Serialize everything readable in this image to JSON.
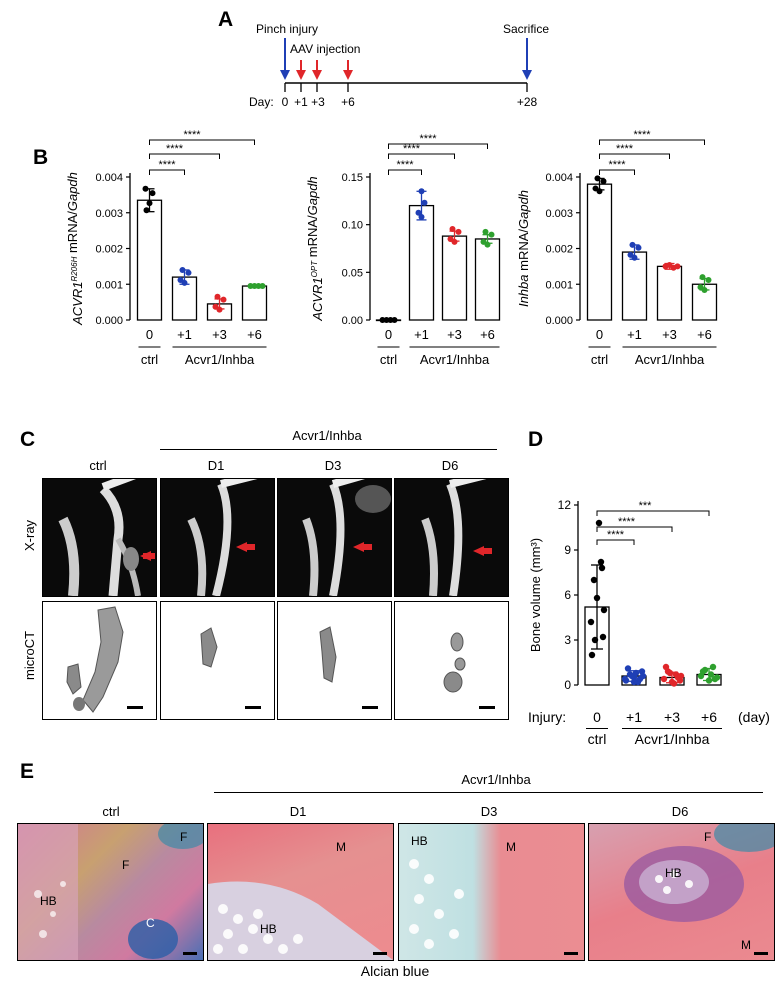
{
  "panelA": {
    "letter": "A",
    "pinch": "Pinch injury",
    "aav": "AAV injection",
    "sacrifice": "Sacrifice",
    "day_label": "Day:",
    "days": [
      "0",
      "+1",
      "+3",
      "+6",
      "+28"
    ]
  },
  "panelB": {
    "letter": "B",
    "charts": [
      {
        "ylabel_parts": [
          "ACVR1",
          "R206H",
          " mRNA/",
          "Gapdh"
        ],
        "yticks": [
          "0.004",
          "0.003",
          "0.002",
          "0.001",
          "0.000"
        ],
        "sig": [
          "****",
          "****",
          "****"
        ]
      },
      {
        "ylabel_parts": [
          "ACVR1",
          "OPT",
          " mRNA/",
          "Gapdh"
        ],
        "yticks": [
          "0.15",
          "0.10",
          "0.05",
          "0.00"
        ],
        "sig": [
          "****",
          "****",
          "****"
        ]
      },
      {
        "ylabel_parts": [
          "Inhba",
          "",
          " mRNA/",
          "Gapdh"
        ],
        "yticks": [
          "0.004",
          "0.003",
          "0.002",
          "0.001",
          "0.000"
        ],
        "sig": [
          "****",
          "****",
          "****"
        ]
      }
    ],
    "xticks": [
      "0",
      "+1",
      "+3",
      "+6"
    ],
    "ctrl": "ctrl",
    "group": "Acvr1/Inhba"
  },
  "panelC": {
    "letter": "C",
    "group": "Acvr1/Inhba",
    "cols": [
      "ctrl",
      "D1",
      "D3",
      "D6"
    ],
    "rows": [
      "X-ray",
      "microCT"
    ]
  },
  "panelD": {
    "letter": "D",
    "ylabel": "Bone volume (mm³)",
    "yticks": [
      "12",
      "9",
      "6",
      "3",
      "0"
    ],
    "injury": "Injury:",
    "xticks": [
      "0",
      "+1",
      "+3",
      "+6"
    ],
    "day": "(day)",
    "ctrl": "ctrl",
    "group": "Acvr1/Inhba",
    "sig": [
      "****",
      "****",
      "***"
    ]
  },
  "panelE": {
    "letter": "E",
    "group": "Acvr1/Inhba",
    "cols": [
      "ctrl",
      "D1",
      "D3",
      "D6"
    ],
    "caption": "Alcian blue",
    "labels": {
      "ctrl": [
        "F",
        "F",
        "HB",
        "C"
      ],
      "d1": [
        "M",
        "HB"
      ],
      "d3": [
        "HB",
        "M"
      ],
      "d6": [
        "F",
        "HB",
        "M"
      ]
    }
  },
  "chart_data": [
    {
      "type": "bar",
      "categories": [
        "0",
        "+1",
        "+3",
        "+6"
      ],
      "values": [
        0.00335,
        0.0012,
        0.00045,
        0.00095
      ],
      "ylim": [
        0,
        0.004
      ],
      "colors": [
        "#000000",
        "#1f3fb5",
        "#e0262a",
        "#2ea02e"
      ]
    },
    {
      "type": "bar",
      "categories": [
        "0",
        "+1",
        "+3",
        "+6"
      ],
      "values": [
        0.0,
        0.12,
        0.088,
        0.085
      ],
      "ylim": [
        0,
        0.15
      ],
      "colors": [
        "#000000",
        "#1f3fb5",
        "#e0262a",
        "#2ea02e"
      ]
    },
    {
      "type": "bar",
      "categories": [
        "0",
        "+1",
        "+3",
        "+6"
      ],
      "values": [
        0.0038,
        0.0019,
        0.0015,
        0.001
      ],
      "ylim": [
        0,
        0.004
      ],
      "colors": [
        "#000000",
        "#1f3fb5",
        "#e0262a",
        "#2ea02e"
      ]
    },
    {
      "type": "bar",
      "categories": [
        "0",
        "+1",
        "+3",
        "+6"
      ],
      "values": [
        5.2,
        0.6,
        0.5,
        0.7
      ],
      "ylim": [
        0,
        12
      ],
      "colors": [
        "#000000",
        "#1f3fb5",
        "#e0262a",
        "#2ea02e"
      ]
    }
  ]
}
